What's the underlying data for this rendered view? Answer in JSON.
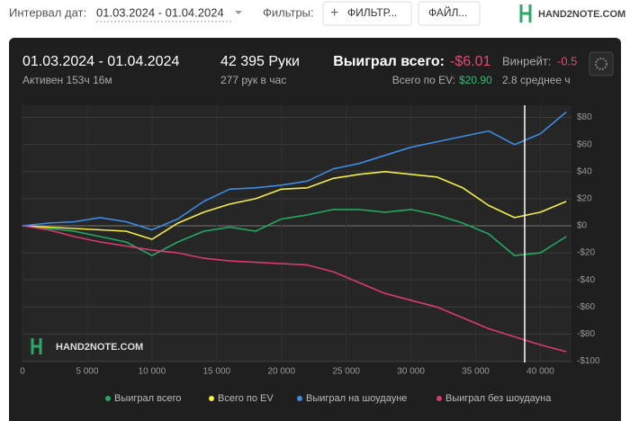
{
  "toolbar": {
    "date_label": "Интервал дат:",
    "date_range": "01.03.2024 - 01.04.2024",
    "filters_label": "Фильтры:",
    "filter_button": "ФИЛЬТР...",
    "file_button": "ФАЙЛ...",
    "logo": "HAND2NOTE.COM"
  },
  "stats": {
    "range": "01.03.2024 - 01.04.2024",
    "active": "Активен 153ч 16м",
    "hands": "42 395 Руки",
    "hands_per_hour": "277 рук в час",
    "won_label": "Выиграл всего:",
    "won_value": "-$6.01",
    "ev_label": "Всего по EV:",
    "ev_value": "$20.90",
    "winrate_label": "Винрейт:",
    "winrate_value": "-0.5",
    "average": "2.8 среднее ч"
  },
  "chart_data": {
    "type": "line",
    "watermark": "HAND2NOTE.COM",
    "x": [
      0,
      2000,
      4000,
      6000,
      8000,
      10000,
      12000,
      14000,
      16000,
      18000,
      20000,
      22000,
      24000,
      26000,
      28000,
      30000,
      32000,
      34000,
      36000,
      38000,
      40000,
      42000
    ],
    "series": [
      {
        "name": "Выиграл всего",
        "color": "#22a862",
        "values": [
          0,
          -2,
          -4,
          -8,
          -12,
          -22,
          -12,
          -4,
          -1,
          -4,
          5,
          8,
          12,
          12,
          10,
          12,
          8,
          2,
          -6,
          -22,
          -20,
          -8
        ]
      },
      {
        "name": "Всего по EV",
        "color": "#f3ee48",
        "values": [
          0,
          -1,
          -2,
          -3,
          -4,
          -10,
          2,
          10,
          16,
          20,
          27,
          28,
          35,
          38,
          40,
          38,
          36,
          28,
          15,
          6,
          10,
          18
        ]
      },
      {
        "name": "Выиграл на шоудауне",
        "color": "#3d8ce3",
        "values": [
          0,
          2,
          3,
          6,
          3,
          -3,
          5,
          18,
          27,
          28,
          30,
          33,
          42,
          46,
          52,
          58,
          62,
          66,
          70,
          60,
          68,
          84
        ]
      },
      {
        "name": "Выиграл без шоудауна",
        "color": "#d83a6d",
        "values": [
          0,
          -3,
          -8,
          -12,
          -15,
          -18,
          -20,
          -24,
          -26,
          -27,
          -28,
          -29,
          -34,
          -42,
          -50,
          -55,
          -60,
          -68,
          -76,
          -82,
          -88,
          -93
        ]
      }
    ],
    "xlim": [
      0,
      42400
    ],
    "ylim": [
      -101,
      89
    ],
    "xticks": [
      0,
      {
        "value": 5000,
        "label": "5 000"
      },
      {
        "value": 10000,
        "label": "10 000"
      },
      {
        "value": 15000,
        "label": "15 000"
      },
      {
        "value": 20000,
        "label": "20 000"
      },
      {
        "value": 25000,
        "label": "25 000"
      },
      {
        "value": 30000,
        "label": "30 000"
      },
      {
        "value": 35000,
        "label": "35 000"
      },
      {
        "value": 40000,
        "label": "40 000"
      }
    ],
    "yticks": [
      {
        "value": -100,
        "label": "-$100"
      },
      {
        "value": -80,
        "label": "-$80"
      },
      {
        "value": -60,
        "label": "-$60"
      },
      {
        "value": -40,
        "label": "-$40"
      },
      {
        "value": -20,
        "label": "-$20"
      },
      {
        "value": 0,
        "label": "$0"
      },
      {
        "value": 20,
        "label": "$20"
      },
      {
        "value": 40,
        "label": "$40"
      },
      {
        "value": 60,
        "label": "$60"
      },
      {
        "value": 80,
        "label": "$80"
      }
    ],
    "grid": true
  }
}
